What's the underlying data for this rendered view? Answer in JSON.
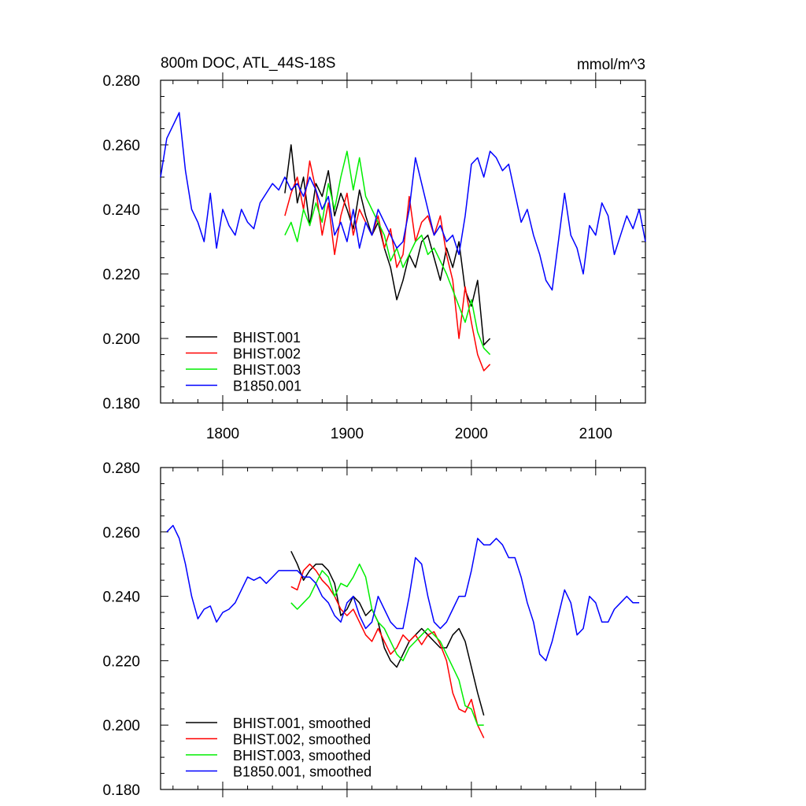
{
  "figure": {
    "title": "800m DOC, ATL_44S-18S",
    "units": "mmol/m^3"
  },
  "chart_data": [
    {
      "type": "line",
      "title": "800m DOC, ATL_44S-18S",
      "units": "mmol/m^3",
      "xlim": [
        1750,
        2140
      ],
      "ylim": [
        0.18,
        0.28
      ],
      "xticks": [
        1800,
        1900,
        2000,
        2100
      ],
      "xtick_labels": [
        "1800",
        "1900",
        "2000",
        "2100"
      ],
      "yticks": [
        0.18,
        0.2,
        0.22,
        0.24,
        0.26,
        0.28
      ],
      "ytick_labels": [
        "0.180",
        "0.200",
        "0.220",
        "0.240",
        "0.260",
        "0.280"
      ],
      "legend_position": "bottom-left",
      "series": [
        {
          "name": "BHIST.001",
          "color": "#000000",
          "x": [
            1850,
            1855,
            1860,
            1865,
            1870,
            1875,
            1880,
            1885,
            1890,
            1895,
            1900,
            1905,
            1910,
            1915,
            1920,
            1925,
            1930,
            1935,
            1940,
            1945,
            1950,
            1955,
            1960,
            1965,
            1970,
            1975,
            1980,
            1985,
            1990,
            1995,
            2000,
            2005,
            2010,
            2015
          ],
          "y": [
            0.245,
            0.26,
            0.242,
            0.25,
            0.235,
            0.248,
            0.244,
            0.252,
            0.238,
            0.245,
            0.24,
            0.234,
            0.246,
            0.238,
            0.232,
            0.236,
            0.228,
            0.222,
            0.212,
            0.218,
            0.226,
            0.222,
            0.23,
            0.232,
            0.225,
            0.218,
            0.228,
            0.222,
            0.23,
            0.215,
            0.21,
            0.218,
            0.198,
            0.2
          ]
        },
        {
          "name": "BHIST.002",
          "color": "#ff0000",
          "x": [
            1850,
            1855,
            1860,
            1865,
            1870,
            1875,
            1880,
            1885,
            1890,
            1895,
            1900,
            1905,
            1910,
            1915,
            1920,
            1925,
            1930,
            1935,
            1940,
            1945,
            1950,
            1955,
            1960,
            1965,
            1970,
            1975,
            1980,
            1985,
            1990,
            1995,
            2000,
            2005,
            2010,
            2015
          ],
          "y": [
            0.238,
            0.245,
            0.25,
            0.24,
            0.255,
            0.246,
            0.232,
            0.242,
            0.226,
            0.238,
            0.245,
            0.232,
            0.24,
            0.236,
            0.232,
            0.238,
            0.228,
            0.234,
            0.222,
            0.226,
            0.244,
            0.23,
            0.236,
            0.238,
            0.232,
            0.238,
            0.226,
            0.218,
            0.2,
            0.216,
            0.205,
            0.195,
            0.19,
            0.192
          ]
        },
        {
          "name": "BHIST.003",
          "color": "#00ee00",
          "x": [
            1850,
            1855,
            1860,
            1865,
            1870,
            1875,
            1880,
            1885,
            1890,
            1895,
            1900,
            1905,
            1910,
            1915,
            1920,
            1925,
            1930,
            1935,
            1940,
            1945,
            1950,
            1955,
            1960,
            1965,
            1970,
            1975,
            1980,
            1985,
            1990,
            1995,
            2000,
            2005,
            2010,
            2015
          ],
          "y": [
            0.232,
            0.236,
            0.23,
            0.24,
            0.235,
            0.242,
            0.236,
            0.248,
            0.24,
            0.25,
            0.258,
            0.246,
            0.256,
            0.244,
            0.24,
            0.236,
            0.232,
            0.224,
            0.228,
            0.222,
            0.226,
            0.23,
            0.232,
            0.226,
            0.228,
            0.224,
            0.22,
            0.215,
            0.21,
            0.205,
            0.212,
            0.202,
            0.197,
            0.195
          ]
        },
        {
          "name": "B1850.001",
          "color": "#0000ff",
          "x": [
            1750,
            1755,
            1760,
            1765,
            1770,
            1775,
            1780,
            1785,
            1790,
            1795,
            1800,
            1805,
            1810,
            1815,
            1820,
            1825,
            1830,
            1835,
            1840,
            1845,
            1850,
            1855,
            1860,
            1865,
            1870,
            1875,
            1880,
            1885,
            1890,
            1895,
            1900,
            1905,
            1910,
            1915,
            1920,
            1925,
            1930,
            1935,
            1940,
            1945,
            1950,
            1955,
            1960,
            1965,
            1970,
            1975,
            1980,
            1985,
            1990,
            1995,
            2000,
            2005,
            2010,
            2015,
            2020,
            2025,
            2030,
            2035,
            2040,
            2045,
            2050,
            2055,
            2060,
            2065,
            2070,
            2075,
            2080,
            2085,
            2090,
            2095,
            2100,
            2105,
            2110,
            2115,
            2120,
            2125,
            2130,
            2135,
            2140
          ],
          "y": [
            0.25,
            0.262,
            0.266,
            0.27,
            0.252,
            0.24,
            0.236,
            0.23,
            0.245,
            0.228,
            0.24,
            0.235,
            0.232,
            0.24,
            0.236,
            0.234,
            0.242,
            0.245,
            0.248,
            0.246,
            0.25,
            0.246,
            0.248,
            0.244,
            0.25,
            0.246,
            0.24,
            0.244,
            0.232,
            0.236,
            0.23,
            0.24,
            0.228,
            0.236,
            0.232,
            0.24,
            0.236,
            0.232,
            0.228,
            0.23,
            0.24,
            0.256,
            0.248,
            0.24,
            0.232,
            0.235,
            0.23,
            0.232,
            0.226,
            0.238,
            0.254,
            0.256,
            0.25,
            0.258,
            0.256,
            0.252,
            0.254,
            0.245,
            0.236,
            0.24,
            0.232,
            0.226,
            0.218,
            0.215,
            0.23,
            0.245,
            0.232,
            0.228,
            0.22,
            0.235,
            0.232,
            0.242,
            0.238,
            0.226,
            0.232,
            0.238,
            0.234,
            0.24,
            0.23
          ]
        }
      ]
    },
    {
      "type": "line",
      "xlim": [
        1750,
        2140
      ],
      "ylim": [
        0.18,
        0.28
      ],
      "xticks": [
        1800,
        1900,
        2000,
        2100
      ],
      "yticks": [
        0.18,
        0.2,
        0.22,
        0.24,
        0.26,
        0.28
      ],
      "ytick_labels": [
        "0.180",
        "0.200",
        "0.220",
        "0.240",
        "0.260",
        "0.280"
      ],
      "legend_position": "bottom-left",
      "series": [
        {
          "name": "BHIST.001, smoothed",
          "color": "#000000",
          "x": [
            1855,
            1860,
            1865,
            1870,
            1875,
            1880,
            1885,
            1890,
            1895,
            1900,
            1905,
            1910,
            1915,
            1920,
            1925,
            1930,
            1935,
            1940,
            1945,
            1950,
            1955,
            1960,
            1965,
            1970,
            1975,
            1980,
            1985,
            1990,
            1995,
            2000,
            2005,
            2010
          ],
          "y": [
            0.254,
            0.25,
            0.245,
            0.248,
            0.25,
            0.25,
            0.248,
            0.244,
            0.234,
            0.236,
            0.24,
            0.238,
            0.234,
            0.236,
            0.232,
            0.224,
            0.22,
            0.218,
            0.222,
            0.226,
            0.228,
            0.23,
            0.228,
            0.226,
            0.224,
            0.224,
            0.228,
            0.23,
            0.226,
            0.218,
            0.21,
            0.203
          ]
        },
        {
          "name": "BHIST.002, smoothed",
          "color": "#ff0000",
          "x": [
            1855,
            1860,
            1865,
            1870,
            1875,
            1880,
            1885,
            1890,
            1895,
            1900,
            1905,
            1910,
            1915,
            1920,
            1925,
            1930,
            1935,
            1940,
            1945,
            1950,
            1955,
            1960,
            1965,
            1970,
            1975,
            1980,
            1985,
            1990,
            1995,
            2000,
            2005,
            2010
          ],
          "y": [
            0.243,
            0.242,
            0.248,
            0.25,
            0.248,
            0.245,
            0.243,
            0.24,
            0.236,
            0.234,
            0.236,
            0.232,
            0.228,
            0.226,
            0.23,
            0.226,
            0.222,
            0.224,
            0.228,
            0.226,
            0.228,
            0.225,
            0.228,
            0.229,
            0.225,
            0.22,
            0.21,
            0.205,
            0.204,
            0.208,
            0.2,
            0.196
          ]
        },
        {
          "name": "BHIST.003, smoothed",
          "color": "#00ee00",
          "x": [
            1855,
            1860,
            1865,
            1870,
            1875,
            1880,
            1885,
            1890,
            1895,
            1900,
            1905,
            1910,
            1915,
            1920,
            1925,
            1930,
            1935,
            1940,
            1945,
            1950,
            1955,
            1960,
            1965,
            1970,
            1975,
            1980,
            1985,
            1990,
            1995,
            2000,
            2005,
            2010
          ],
          "y": [
            0.238,
            0.236,
            0.238,
            0.24,
            0.244,
            0.248,
            0.246,
            0.24,
            0.244,
            0.243,
            0.246,
            0.25,
            0.246,
            0.236,
            0.232,
            0.23,
            0.226,
            0.222,
            0.22,
            0.224,
            0.226,
            0.228,
            0.23,
            0.228,
            0.226,
            0.222,
            0.218,
            0.214,
            0.206,
            0.205,
            0.2,
            0.2
          ]
        },
        {
          "name": "B1850.001, smoothed",
          "color": "#0000ff",
          "x": [
            1755,
            1760,
            1765,
            1770,
            1775,
            1780,
            1785,
            1790,
            1795,
            1800,
            1805,
            1810,
            1815,
            1820,
            1825,
            1830,
            1835,
            1840,
            1845,
            1850,
            1855,
            1860,
            1865,
            1870,
            1875,
            1880,
            1885,
            1890,
            1895,
            1900,
            1905,
            1910,
            1915,
            1920,
            1925,
            1930,
            1935,
            1940,
            1945,
            1950,
            1955,
            1960,
            1965,
            1970,
            1975,
            1980,
            1985,
            1990,
            1995,
            2000,
            2005,
            2010,
            2015,
            2020,
            2025,
            2030,
            2035,
            2040,
            2045,
            2050,
            2055,
            2060,
            2065,
            2070,
            2075,
            2080,
            2085,
            2090,
            2095,
            2100,
            2105,
            2110,
            2115,
            2120,
            2125,
            2130,
            2135
          ],
          "y": [
            0.26,
            0.262,
            0.258,
            0.25,
            0.24,
            0.233,
            0.236,
            0.237,
            0.232,
            0.235,
            0.236,
            0.238,
            0.242,
            0.246,
            0.245,
            0.246,
            0.244,
            0.246,
            0.248,
            0.248,
            0.248,
            0.248,
            0.246,
            0.246,
            0.244,
            0.24,
            0.238,
            0.234,
            0.232,
            0.238,
            0.24,
            0.234,
            0.23,
            0.232,
            0.24,
            0.236,
            0.232,
            0.23,
            0.23,
            0.24,
            0.252,
            0.25,
            0.24,
            0.232,
            0.23,
            0.232,
            0.236,
            0.24,
            0.24,
            0.248,
            0.258,
            0.256,
            0.256,
            0.258,
            0.256,
            0.252,
            0.252,
            0.246,
            0.238,
            0.232,
            0.222,
            0.22,
            0.226,
            0.234,
            0.242,
            0.238,
            0.228,
            0.23,
            0.24,
            0.238,
            0.232,
            0.232,
            0.236,
            0.238,
            0.24,
            0.238,
            0.238
          ]
        }
      ]
    }
  ]
}
